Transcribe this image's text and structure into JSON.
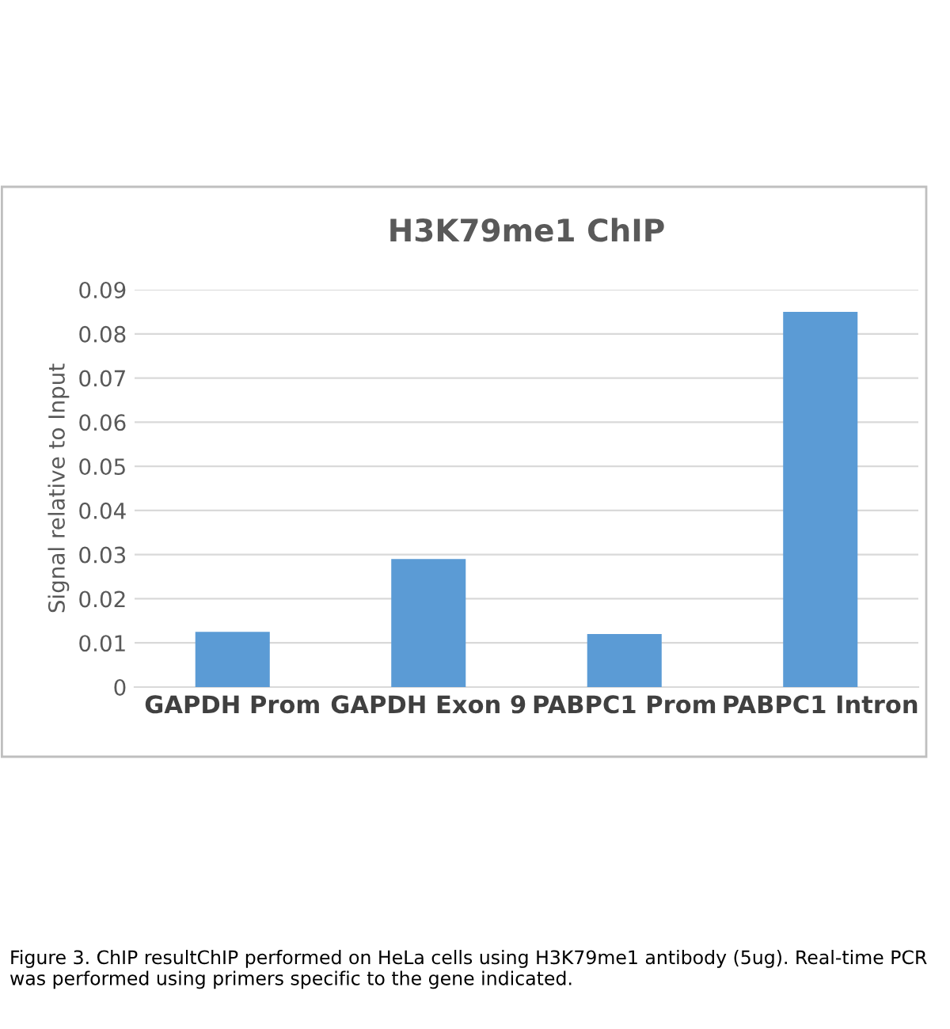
{
  "chart_data": {
    "type": "bar",
    "title": "H3K79me1 ChIP",
    "ylabel": "Signal relative to Input",
    "categories": [
      "GAPDH Prom",
      "GAPDH Exon 9",
      "PABPC1 Prom",
      "PABPC1 Intron"
    ],
    "values": [
      0.0125,
      0.029,
      0.012,
      0.085
    ],
    "color": "#5b9bd5",
    "ylim": [
      0,
      0.09
    ],
    "yticks": [
      {
        "value": 0,
        "label": "0"
      },
      0.01,
      0.02,
      0.03,
      0.04,
      0.05,
      0.06,
      0.07,
      0.08,
      0.09
    ],
    "grid": "y",
    "annotations": [
      "Figure 3. ChIP resultChIP performed on HeLa cells using H3K79me1 antibody (5ug). Real-time PCR was performed using primers specific to the gene indicated."
    ]
  }
}
